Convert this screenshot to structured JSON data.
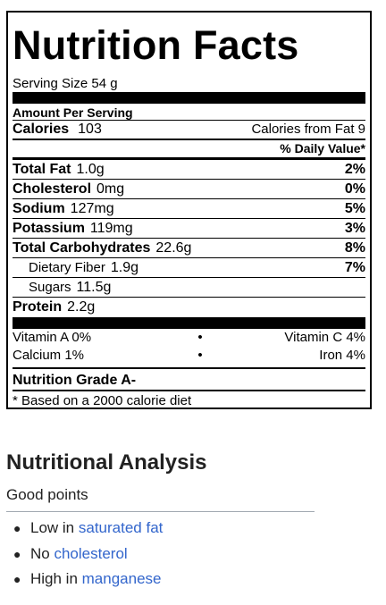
{
  "label": {
    "title": "Nutrition Facts",
    "serving_size": "Serving Size 54 g",
    "amount_per_serving": "Amount Per Serving",
    "calories_label": "Calories",
    "calories_value": "103",
    "calories_from_fat": "Calories from Fat 9",
    "daily_value_header": "% Daily Value*",
    "nutrients": [
      {
        "label": "Total Fat",
        "amount": "1.0g",
        "pct": "2%"
      },
      {
        "label": "Cholesterol",
        "amount": "0mg",
        "pct": "0%"
      },
      {
        "label": "Sodium",
        "amount": "127mg",
        "pct": "5%"
      },
      {
        "label": "Potassium",
        "amount": "119mg",
        "pct": "3%"
      },
      {
        "label": "Total Carbohydrates",
        "amount": "22.6g",
        "pct": "8%"
      },
      {
        "label": "Dietary Fiber",
        "amount": "1.9g",
        "pct": "7%"
      },
      {
        "label": "Sugars",
        "amount": "11.5g",
        "pct": ""
      },
      {
        "label": "Protein",
        "amount": "2.2g",
        "pct": ""
      }
    ],
    "vitamins": [
      {
        "left": "Vitamin A 0%",
        "dot": "•",
        "right": "Vitamin C 4%"
      },
      {
        "left": "Calcium 1%",
        "dot": "•",
        "right": "Iron 4%"
      }
    ],
    "grade": "Nutrition Grade A-",
    "footnote": "* Based on a 2000 calorie diet"
  },
  "analysis": {
    "heading": "Nutritional Analysis",
    "subheading": "Good points",
    "points": [
      {
        "prefix": "Low in ",
        "link": "saturated fat"
      },
      {
        "prefix": "No ",
        "link": "cholesterol"
      },
      {
        "prefix": "High in ",
        "link": "manganese"
      }
    ],
    "bullet": "●"
  },
  "colors": {
    "link": "#3366cc",
    "text": "#222222",
    "rule": "#a2a9b1"
  }
}
